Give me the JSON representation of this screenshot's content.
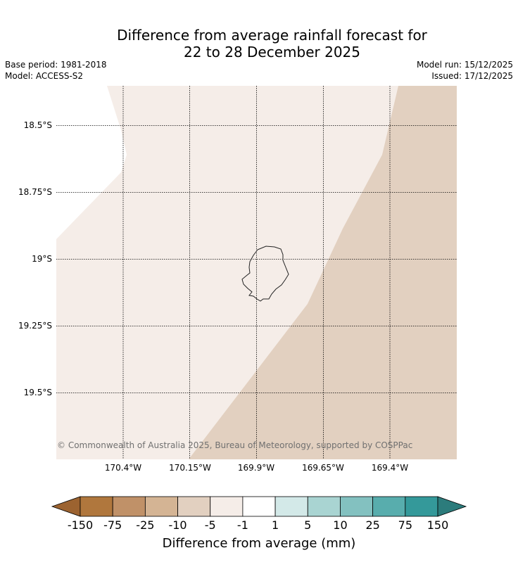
{
  "header": {
    "title_line1": "Difference from average rainfall forecast for",
    "title_line2": "22 to 28 December 2025",
    "base_period": "Base period: 1981-2018",
    "model": "Model: ACCESS-S2",
    "model_run": "Model run: 15/12/2025",
    "issued": "Issued: 17/12/2025"
  },
  "map": {
    "lat_labels": [
      "18.5°S",
      "18.75°S",
      "19°S",
      "19.25°S",
      "19.5°S"
    ],
    "lon_labels": [
      "170.4°W",
      "170.15°W",
      "169.9°W",
      "169.65°W",
      "169.4°W"
    ],
    "region_colors": {
      "near_average": "#f5ede8",
      "slightly_below": "#e2d0c0"
    },
    "copyright": "© Commonwealth of Australia 2025, Bureau of Meteorology, supported by COSPPac"
  },
  "colorbar": {
    "title": "Difference from average (mm)",
    "tick_labels": [
      "-150",
      "-75",
      "-25",
      "-10",
      "-5",
      "-1",
      "1",
      "5",
      "10",
      "25",
      "75",
      "150"
    ],
    "colors": [
      "#9c6330",
      "#b0773d",
      "#c09168",
      "#d4b494",
      "#e2d0c0",
      "#f5ede8",
      "#ffffff",
      "#d3e9e8",
      "#a9d4d2",
      "#83c1c0",
      "#58adad",
      "#34999a",
      "#2c7c7c"
    ]
  }
}
